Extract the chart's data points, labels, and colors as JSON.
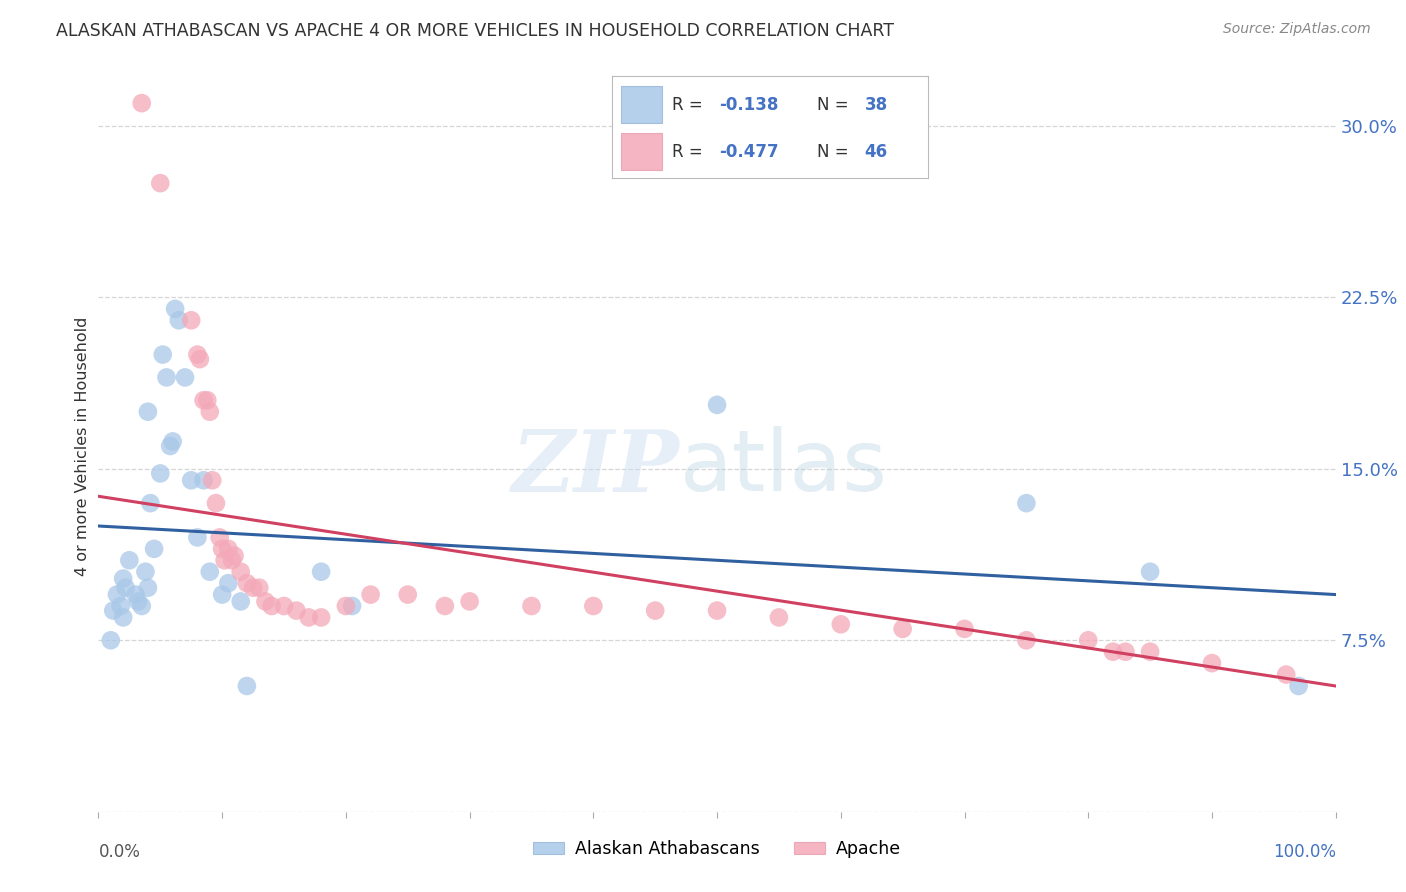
{
  "title": "ALASKAN ATHABASCAN VS APACHE 4 OR MORE VEHICLES IN HOUSEHOLD CORRELATION CHART",
  "source": "Source: ZipAtlas.com",
  "ylabel": "4 or more Vehicles in Household",
  "xlim": [
    0,
    100
  ],
  "ylim": [
    0,
    32
  ],
  "yticks": [
    0,
    7.5,
    15.0,
    22.5,
    30.0
  ],
  "ytick_labels": [
    "",
    "7.5%",
    "15.0%",
    "22.5%",
    "30.0%"
  ],
  "background_color": "#ffffff",
  "grid_color": "#cccccc",
  "blue_color": "#a8c8e8",
  "pink_color": "#f4a8b8",
  "blue_line_color": "#3060a0",
  "pink_line_color": "#d04060",
  "blue_label": "Alaskan Athabascans",
  "pink_label": "Apache",
  "legend_r1": "-0.138",
  "legend_n1": "38",
  "legend_r2": "-0.477",
  "legend_n2": "46",
  "blue_scatter": [
    [
      1.0,
      7.5
    ],
    [
      1.2,
      8.8
    ],
    [
      1.5,
      9.5
    ],
    [
      1.8,
      9.0
    ],
    [
      2.0,
      8.5
    ],
    [
      2.0,
      10.2
    ],
    [
      2.2,
      9.8
    ],
    [
      2.5,
      11.0
    ],
    [
      3.0,
      9.5
    ],
    [
      3.2,
      9.2
    ],
    [
      3.5,
      9.0
    ],
    [
      3.8,
      10.5
    ],
    [
      4.0,
      9.8
    ],
    [
      4.0,
      17.5
    ],
    [
      4.2,
      13.5
    ],
    [
      4.5,
      11.5
    ],
    [
      5.0,
      14.8
    ],
    [
      5.2,
      20.0
    ],
    [
      5.5,
      19.0
    ],
    [
      5.8,
      16.0
    ],
    [
      6.0,
      16.2
    ],
    [
      6.2,
      22.0
    ],
    [
      6.5,
      21.5
    ],
    [
      7.0,
      19.0
    ],
    [
      7.5,
      14.5
    ],
    [
      8.0,
      12.0
    ],
    [
      8.5,
      14.5
    ],
    [
      9.0,
      10.5
    ],
    [
      10.0,
      9.5
    ],
    [
      10.5,
      10.0
    ],
    [
      11.5,
      9.2
    ],
    [
      12.0,
      5.5
    ],
    [
      18.0,
      10.5
    ],
    [
      20.5,
      9.0
    ],
    [
      50.0,
      17.8
    ],
    [
      75.0,
      13.5
    ],
    [
      85.0,
      10.5
    ],
    [
      97.0,
      5.5
    ]
  ],
  "pink_scatter": [
    [
      3.5,
      31.0
    ],
    [
      5.0,
      27.5
    ],
    [
      7.5,
      21.5
    ],
    [
      8.0,
      20.0
    ],
    [
      8.2,
      19.8
    ],
    [
      8.5,
      18.0
    ],
    [
      8.8,
      18.0
    ],
    [
      9.0,
      17.5
    ],
    [
      9.2,
      14.5
    ],
    [
      9.5,
      13.5
    ],
    [
      9.8,
      12.0
    ],
    [
      10.0,
      11.5
    ],
    [
      10.2,
      11.0
    ],
    [
      10.5,
      11.5
    ],
    [
      10.8,
      11.0
    ],
    [
      11.0,
      11.2
    ],
    [
      11.5,
      10.5
    ],
    [
      12.0,
      10.0
    ],
    [
      12.5,
      9.8
    ],
    [
      13.0,
      9.8
    ],
    [
      13.5,
      9.2
    ],
    [
      14.0,
      9.0
    ],
    [
      15.0,
      9.0
    ],
    [
      16.0,
      8.8
    ],
    [
      17.0,
      8.5
    ],
    [
      18.0,
      8.5
    ],
    [
      20.0,
      9.0
    ],
    [
      22.0,
      9.5
    ],
    [
      25.0,
      9.5
    ],
    [
      28.0,
      9.0
    ],
    [
      30.0,
      9.2
    ],
    [
      35.0,
      9.0
    ],
    [
      40.0,
      9.0
    ],
    [
      45.0,
      8.8
    ],
    [
      50.0,
      8.8
    ],
    [
      55.0,
      8.5
    ],
    [
      60.0,
      8.2
    ],
    [
      65.0,
      8.0
    ],
    [
      70.0,
      8.0
    ],
    [
      75.0,
      7.5
    ],
    [
      80.0,
      7.5
    ],
    [
      82.0,
      7.0
    ],
    [
      83.0,
      7.0
    ],
    [
      85.0,
      7.0
    ],
    [
      90.0,
      6.5
    ],
    [
      96.0,
      6.0
    ]
  ],
  "blue_trend": [
    0,
    100
  ],
  "blue_trend_y": [
    12.5,
    9.5
  ],
  "pink_trend": [
    0,
    100
  ],
  "pink_trend_y": [
    13.8,
    5.5
  ]
}
